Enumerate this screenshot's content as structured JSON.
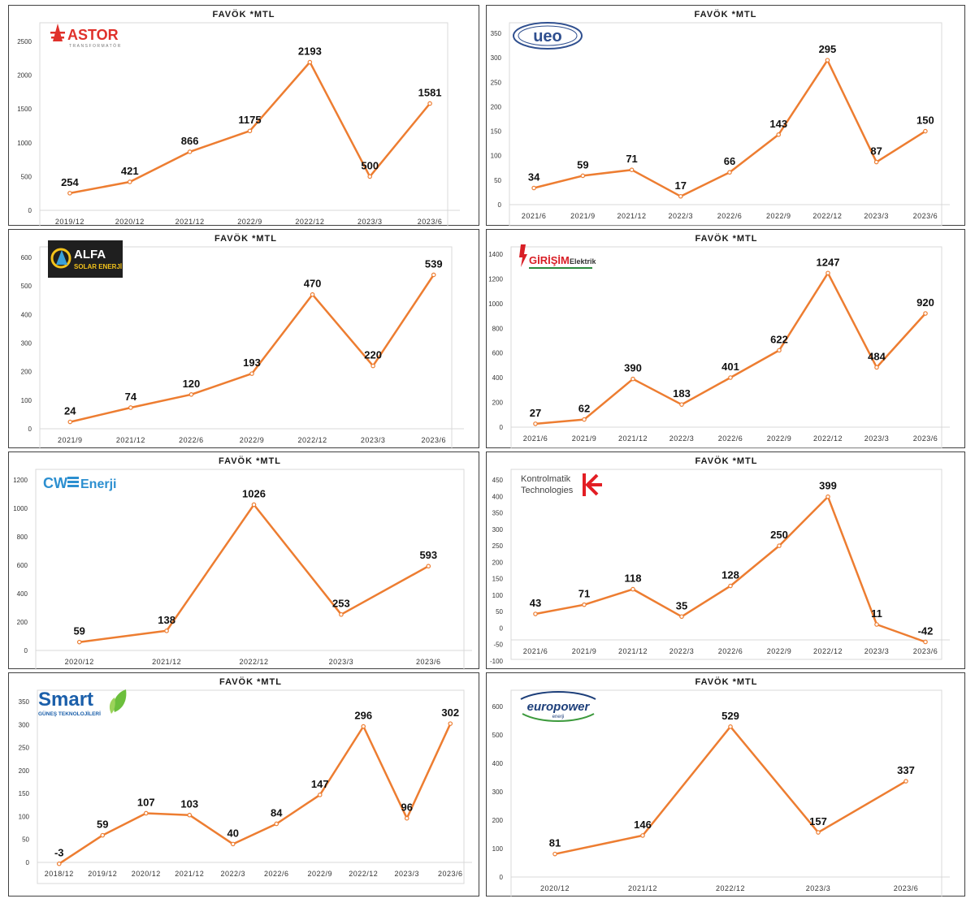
{
  "charts": [
    {
      "logo": {
        "icon": "astor-logo",
        "text": "ASTOR",
        "sub": "TRANSFORMATÖR",
        "color": "#e0312b"
      },
      "chart_data": {
        "type": "line",
        "title": "FAVÖK *MTL",
        "categories": [
          "2019/12",
          "2020/12",
          "2021/12",
          "2022/9",
          "2022/12",
          "2023/3",
          "2023/6"
        ],
        "values": [
          254,
          421,
          866,
          1175,
          2193,
          500,
          1581
        ],
        "yticks": [
          0,
          500,
          1000,
          1500,
          2000,
          2500
        ],
        "ylim": [
          0,
          2500
        ],
        "color": "#ed7d31",
        "grid": false,
        "legend": "none"
      }
    },
    {
      "logo": {
        "icon": "ueo-logo",
        "text": "ueo",
        "color": "#2f4f8f"
      },
      "chart_data": {
        "type": "line",
        "title": "FAVÖK *MTL",
        "categories": [
          "2021/6",
          "2021/9",
          "2021/12",
          "2022/3",
          "2022/6",
          "2022/9",
          "2022/12",
          "2023/3",
          "2023/6"
        ],
        "values": [
          34,
          59,
          71,
          17,
          66,
          143,
          295,
          87,
          150
        ],
        "yticks": [
          0,
          50,
          100,
          150,
          200,
          250,
          300,
          350
        ],
        "ylim": [
          0,
          350
        ],
        "color": "#ed7d31",
        "grid": false,
        "legend": "none"
      }
    },
    {
      "logo": {
        "icon": "alfa-solar-logo",
        "text": "ALFA",
        "sub": "SOLAR ENERJİ",
        "color": "#f2c21b"
      },
      "chart_data": {
        "type": "line",
        "title": "FAVÖK *MTL",
        "categories": [
          "2021/9",
          "2021/12",
          "2022/6",
          "2022/9",
          "2022/12",
          "2023/3",
          "2023/6"
        ],
        "values": [
          24,
          74,
          120,
          193,
          470,
          220,
          539
        ],
        "yticks": [
          0,
          100,
          200,
          300,
          400,
          500,
          600
        ],
        "ylim": [
          0,
          600
        ],
        "color": "#ed7d31",
        "grid": false,
        "legend": "none"
      }
    },
    {
      "logo": {
        "icon": "girisim-logo",
        "text": "GİRİŞİM",
        "text2": "Elektrik",
        "color": "#d81f26"
      },
      "chart_data": {
        "type": "line",
        "title": "FAVÖK *MTL",
        "categories": [
          "2021/6",
          "2021/9",
          "2021/12",
          "2022/3",
          "2022/6",
          "2022/9",
          "2022/12",
          "2023/3",
          "2023/6"
        ],
        "values": [
          27,
          62,
          390,
          183,
          401,
          622,
          1247,
          484,
          920
        ],
        "yticks": [
          0,
          200,
          400,
          600,
          800,
          1000,
          1200,
          1400
        ],
        "ylim": [
          0,
          1400
        ],
        "color": "#ed7d31",
        "grid": false,
        "legend": "none"
      }
    },
    {
      "logo": {
        "icon": "cw-enerji-logo",
        "text": "CW",
        "text2": "Enerji",
        "color": "#2c8fd0"
      },
      "chart_data": {
        "type": "line",
        "title": "FAVÖK *MTL",
        "categories": [
          "2020/12",
          "2021/12",
          "2022/12",
          "2023/3",
          "2023/6"
        ],
        "values": [
          59,
          138,
          1026,
          253,
          593
        ],
        "yticks": [
          0,
          200,
          400,
          600,
          800,
          1000,
          1200
        ],
        "ylim": [
          0,
          1200
        ],
        "color": "#ed7d31",
        "grid": false,
        "legend": "none"
      }
    },
    {
      "logo": {
        "icon": "kontrolmatik-logo",
        "text": "Kontrolmatik",
        "text2": "Technologies",
        "color": "#e31e24"
      },
      "chart_data": {
        "type": "line",
        "title": "FAVÖK *MTL",
        "categories": [
          "2021/6",
          "2021/9",
          "2021/12",
          "2022/3",
          "2022/6",
          "2022/9",
          "2022/12",
          "2023/3",
          "2023/6"
        ],
        "values": [
          43,
          71,
          118,
          35,
          128,
          250,
          399,
          11,
          -42
        ],
        "yticks": [
          -100,
          -50,
          0,
          50,
          100,
          150,
          200,
          250,
          300,
          350,
          400,
          450
        ],
        "ylim": [
          -100,
          450
        ],
        "color": "#ed7d31",
        "grid": false,
        "legend": "none"
      }
    },
    {
      "logo": {
        "icon": "smart-gunes-logo",
        "text": "Smart",
        "sub": "GÜNEŞ TEKNOLOJİLERİ",
        "color": "#1b5faa"
      },
      "chart_data": {
        "type": "line",
        "title": "FAVÖK *MTL",
        "categories": [
          "2018/12",
          "2019/12",
          "2020/12",
          "2021/12",
          "2022/3",
          "2022/6",
          "2022/9",
          "2022/12",
          "2023/3",
          "2023/6"
        ],
        "values": [
          -3,
          59,
          107,
          103,
          40,
          84,
          147,
          296,
          96,
          302
        ],
        "yticks": [
          0,
          50,
          100,
          150,
          200,
          250,
          300,
          350
        ],
        "ylim": [
          0,
          350
        ],
        "color": "#ed7d31",
        "grid": false,
        "legend": "none"
      }
    },
    {
      "logo": {
        "icon": "europower-logo",
        "text": "europower",
        "sub": "enerji",
        "color": "#1d3f7a"
      },
      "chart_data": {
        "type": "line",
        "title": "FAVÖK *MTL",
        "categories": [
          "2020/12",
          "2021/12",
          "2022/12",
          "2023/3",
          "2023/6"
        ],
        "values": [
          81,
          146,
          529,
          157,
          337
        ],
        "yticks": [
          0,
          100,
          200,
          300,
          400,
          500,
          600
        ],
        "ylim": [
          0,
          600
        ],
        "color": "#ed7d31",
        "grid": false,
        "legend": "none"
      }
    }
  ]
}
